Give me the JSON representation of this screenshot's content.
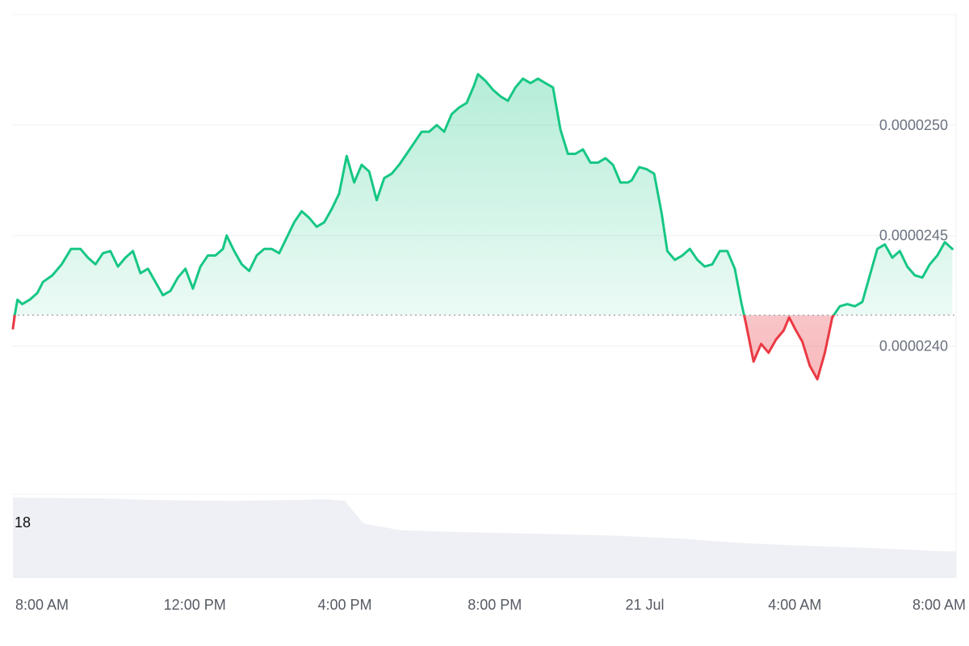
{
  "chart_data": {
    "type": "area",
    "x_ticks": [
      "8:00 AM",
      "12:00 PM",
      "4:00 PM",
      "8:00 PM",
      "21 Jul",
      "4:00 AM",
      "8:00 AM"
    ],
    "x_tick_hours": [
      0,
      4,
      8,
      12,
      16,
      20,
      24
    ],
    "x_range_hours": [
      -0.85,
      24.3
    ],
    "y_ticks": [
      2.4e-05,
      2.45e-05,
      2.5e-05
    ],
    "y_tick_labels": [
      "0.0000240",
      "0.0000245",
      "0.0000250"
    ],
    "ylim": [
      2.333e-05,
      2.55e-05
    ],
    "baseline": 2.414e-05,
    "colors": {
      "up_line": "#16c784",
      "down_line": "#ea3943",
      "up_fill": "#16c784",
      "down_fill": "#ea3943",
      "grid": "#eef0f3",
      "volume": "#eef0f5",
      "baseline": "#9aa0a6"
    },
    "series": [
      {
        "values": [
          [
            -0.85,
            2.408e-05
          ],
          [
            -0.8,
            2.414e-05
          ],
          [
            -0.73,
            2.421e-05
          ],
          [
            -0.6,
            2.419e-05
          ],
          [
            -0.4,
            2.421e-05
          ],
          [
            -0.2,
            2.424e-05
          ],
          [
            -0.05,
            2.429e-05
          ],
          [
            0.2,
            2.432e-05
          ],
          [
            0.45,
            2.437e-05
          ],
          [
            0.7,
            2.444e-05
          ],
          [
            0.95,
            2.444e-05
          ],
          [
            1.15,
            2.44e-05
          ],
          [
            1.35,
            2.437e-05
          ],
          [
            1.55,
            2.442e-05
          ],
          [
            1.75,
            2.443e-05
          ],
          [
            1.95,
            2.436e-05
          ],
          [
            2.15,
            2.44e-05
          ],
          [
            2.35,
            2.443e-05
          ],
          [
            2.55,
            2.433e-05
          ],
          [
            2.75,
            2.435e-05
          ],
          [
            2.95,
            2.429e-05
          ],
          [
            3.15,
            2.423e-05
          ],
          [
            3.35,
            2.425e-05
          ],
          [
            3.55,
            2.431e-05
          ],
          [
            3.75,
            2.435e-05
          ],
          [
            3.95,
            2.426e-05
          ],
          [
            4.15,
            2.436e-05
          ],
          [
            4.35,
            2.441e-05
          ],
          [
            4.55,
            2.441e-05
          ],
          [
            4.75,
            2.444e-05
          ],
          [
            4.85,
            2.45e-05
          ],
          [
            5.05,
            2.443e-05
          ],
          [
            5.25,
            2.437e-05
          ],
          [
            5.45,
            2.434e-05
          ],
          [
            5.65,
            2.441e-05
          ],
          [
            5.85,
            2.444e-05
          ],
          [
            6.05,
            2.444e-05
          ],
          [
            6.25,
            2.442e-05
          ],
          [
            6.45,
            2.449e-05
          ],
          [
            6.65,
            2.456e-05
          ],
          [
            6.85,
            2.461e-05
          ],
          [
            7.05,
            2.458e-05
          ],
          [
            7.25,
            2.454e-05
          ],
          [
            7.45,
            2.456e-05
          ],
          [
            7.65,
            2.462e-05
          ],
          [
            7.85,
            2.469e-05
          ],
          [
            8.05,
            2.486e-05
          ],
          [
            8.25,
            2.474e-05
          ],
          [
            8.45,
            2.482e-05
          ],
          [
            8.65,
            2.479e-05
          ],
          [
            8.85,
            2.466e-05
          ],
          [
            9.05,
            2.476e-05
          ],
          [
            9.25,
            2.478e-05
          ],
          [
            9.45,
            2.482e-05
          ],
          [
            9.65,
            2.487e-05
          ],
          [
            9.85,
            2.492e-05
          ],
          [
            10.05,
            2.497e-05
          ],
          [
            10.25,
            2.497e-05
          ],
          [
            10.45,
            2.5e-05
          ],
          [
            10.65,
            2.497e-05
          ],
          [
            10.85,
            2.505e-05
          ],
          [
            11.05,
            2.508e-05
          ],
          [
            11.25,
            2.51e-05
          ],
          [
            11.45,
            2.518e-05
          ],
          [
            11.55,
            2.523e-05
          ],
          [
            11.75,
            2.52e-05
          ],
          [
            11.95,
            2.516e-05
          ],
          [
            12.15,
            2.513e-05
          ],
          [
            12.35,
            2.511e-05
          ],
          [
            12.55,
            2.517e-05
          ],
          [
            12.75,
            2.521e-05
          ],
          [
            12.95,
            2.519e-05
          ],
          [
            13.15,
            2.521e-05
          ],
          [
            13.35,
            2.519e-05
          ],
          [
            13.55,
            2.517e-05
          ],
          [
            13.75,
            2.498e-05
          ],
          [
            13.95,
            2.487e-05
          ],
          [
            14.15,
            2.487e-05
          ],
          [
            14.35,
            2.489e-05
          ],
          [
            14.55,
            2.483e-05
          ],
          [
            14.75,
            2.483e-05
          ],
          [
            14.95,
            2.485e-05
          ],
          [
            15.15,
            2.482e-05
          ],
          [
            15.35,
            2.474e-05
          ],
          [
            15.55,
            2.474e-05
          ],
          [
            15.65,
            2.475e-05
          ],
          [
            15.85,
            2.481e-05
          ],
          [
            16.05,
            2.48e-05
          ],
          [
            16.25,
            2.478e-05
          ],
          [
            16.45,
            2.46e-05
          ],
          [
            16.6,
            2.443e-05
          ],
          [
            16.8,
            2.439e-05
          ],
          [
            17.0,
            2.441e-05
          ],
          [
            17.2,
            2.444e-05
          ],
          [
            17.4,
            2.439e-05
          ],
          [
            17.6,
            2.436e-05
          ],
          [
            17.8,
            2.437e-05
          ],
          [
            18.0,
            2.443e-05
          ],
          [
            18.2,
            2.443e-05
          ],
          [
            18.4,
            2.435e-05
          ],
          [
            18.58,
            2.419e-05
          ],
          [
            18.7,
            2.41e-05
          ],
          [
            18.9,
            2.393e-05
          ],
          [
            19.1,
            2.401e-05
          ],
          [
            19.3,
            2.397e-05
          ],
          [
            19.5,
            2.403e-05
          ],
          [
            19.7,
            2.407e-05
          ],
          [
            19.85,
            2.413e-05
          ],
          [
            20.0,
            2.408e-05
          ],
          [
            20.2,
            2.402e-05
          ],
          [
            20.4,
            2.391e-05
          ],
          [
            20.6,
            2.385e-05
          ],
          [
            20.8,
            2.397e-05
          ],
          [
            21.0,
            2.413e-05
          ],
          [
            21.2,
            2.418e-05
          ],
          [
            21.4,
            2.419e-05
          ],
          [
            21.6,
            2.418e-05
          ],
          [
            21.8,
            2.42e-05
          ],
          [
            22.0,
            2.432e-05
          ],
          [
            22.2,
            2.444e-05
          ],
          [
            22.4,
            2.446e-05
          ],
          [
            22.6,
            2.44e-05
          ],
          [
            22.8,
            2.443e-05
          ],
          [
            23.0,
            2.436e-05
          ],
          [
            23.2,
            2.432e-05
          ],
          [
            23.4,
            2.431e-05
          ],
          [
            23.6,
            2.437e-05
          ],
          [
            23.8,
            2.441e-05
          ],
          [
            24.0,
            2.447e-05
          ],
          [
            24.2,
            2.444e-05
          ]
        ]
      }
    ],
    "volume": {
      "label": "18",
      "values": [
        [
          -0.85,
          96
        ],
        [
          1.5,
          95
        ],
        [
          3.0,
          93
        ],
        [
          5.0,
          92
        ],
        [
          6.5,
          93
        ],
        [
          7.5,
          94
        ],
        [
          8.0,
          92
        ],
        [
          8.5,
          65
        ],
        [
          9.5,
          57
        ],
        [
          11.0,
          55
        ],
        [
          13.0,
          53
        ],
        [
          15.0,
          51
        ],
        [
          17.0,
          47
        ],
        [
          18.5,
          42
        ],
        [
          20.0,
          39
        ],
        [
          22.0,
          36
        ],
        [
          24.0,
          32
        ],
        [
          24.3,
          32
        ]
      ]
    }
  }
}
